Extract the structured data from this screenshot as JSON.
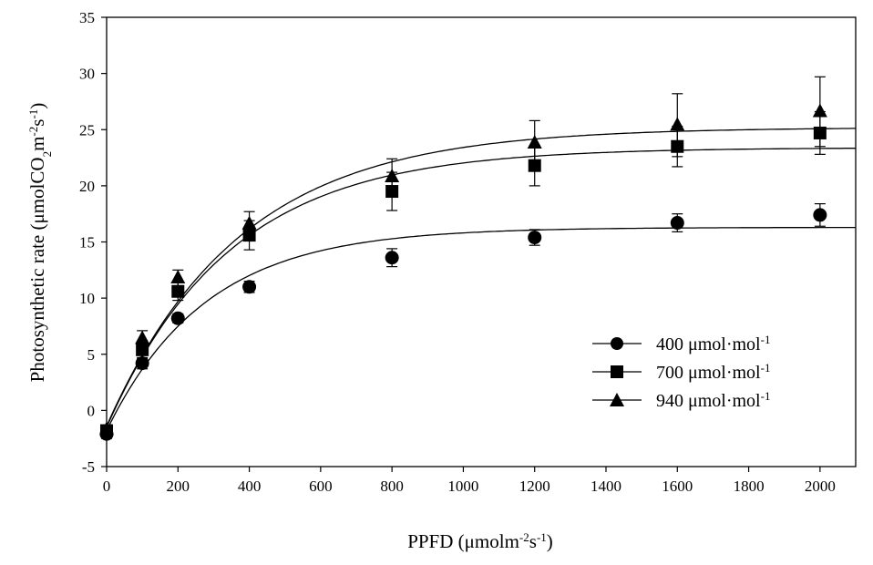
{
  "chart_data": {
    "type": "scatter",
    "xlabel": {
      "base": "PPFD (μmolm",
      "sup1": "-2",
      "mid": "s",
      "sup2": "-1",
      "end": ")"
    },
    "ylabel": {
      "base": "Photosynthetic rate (μmolCO",
      "sub": "2",
      "mid1": "m",
      "sup1": "-2",
      "mid2": "s",
      "sup2": "-1",
      "end": ")"
    },
    "xlim": [
      0,
      2100
    ],
    "ylim": [
      -5,
      35
    ],
    "xticks": [
      "0",
      "200",
      "400",
      "600",
      "800",
      "1000",
      "1200",
      "1400",
      "1600",
      "1800",
      "2000"
    ],
    "yticks": [
      "-5",
      "0",
      "5",
      "10",
      "15",
      "20",
      "25",
      "30",
      "35"
    ],
    "grid": false,
    "legend_position": "lower-right",
    "x": [
      0,
      100,
      200,
      400,
      800,
      1200,
      1600,
      2000
    ],
    "series": [
      {
        "name": "400 μmol·mol",
        "name_sup": "-1",
        "marker": "circle",
        "values": [
          -2.1,
          4.2,
          8.2,
          11.0,
          13.6,
          15.4,
          16.7,
          17.4
        ],
        "errors": [
          0.4,
          0.5,
          0.4,
          0.5,
          0.8,
          0.7,
          0.8,
          1.0
        ],
        "fit": {
          "amax": 16.3,
          "rd": 1.8,
          "k": 0.0036
        }
      },
      {
        "name": "700 μmol·mol",
        "name_sup": "-1",
        "marker": "square",
        "values": [
          -1.8,
          5.4,
          10.6,
          15.6,
          19.5,
          21.8,
          23.5,
          24.7
        ],
        "errors": [
          0.4,
          0.8,
          0.8,
          1.3,
          1.7,
          1.8,
          1.8,
          1.9
        ],
        "fit": {
          "amax": 23.4,
          "rd": 1.5,
          "k": 0.0029
        }
      },
      {
        "name": "940 μmol·mol",
        "name_sup": "-1",
        "marker": "triangle",
        "values": [
          -1.7,
          6.4,
          11.8,
          16.6,
          20.8,
          23.8,
          25.4,
          26.6
        ],
        "errors": [
          0.4,
          0.7,
          0.7,
          1.1,
          1.6,
          2.0,
          2.8,
          3.1
        ],
        "fit": {
          "amax": 25.2,
          "rd": 1.4,
          "k": 0.0027
        }
      }
    ]
  }
}
